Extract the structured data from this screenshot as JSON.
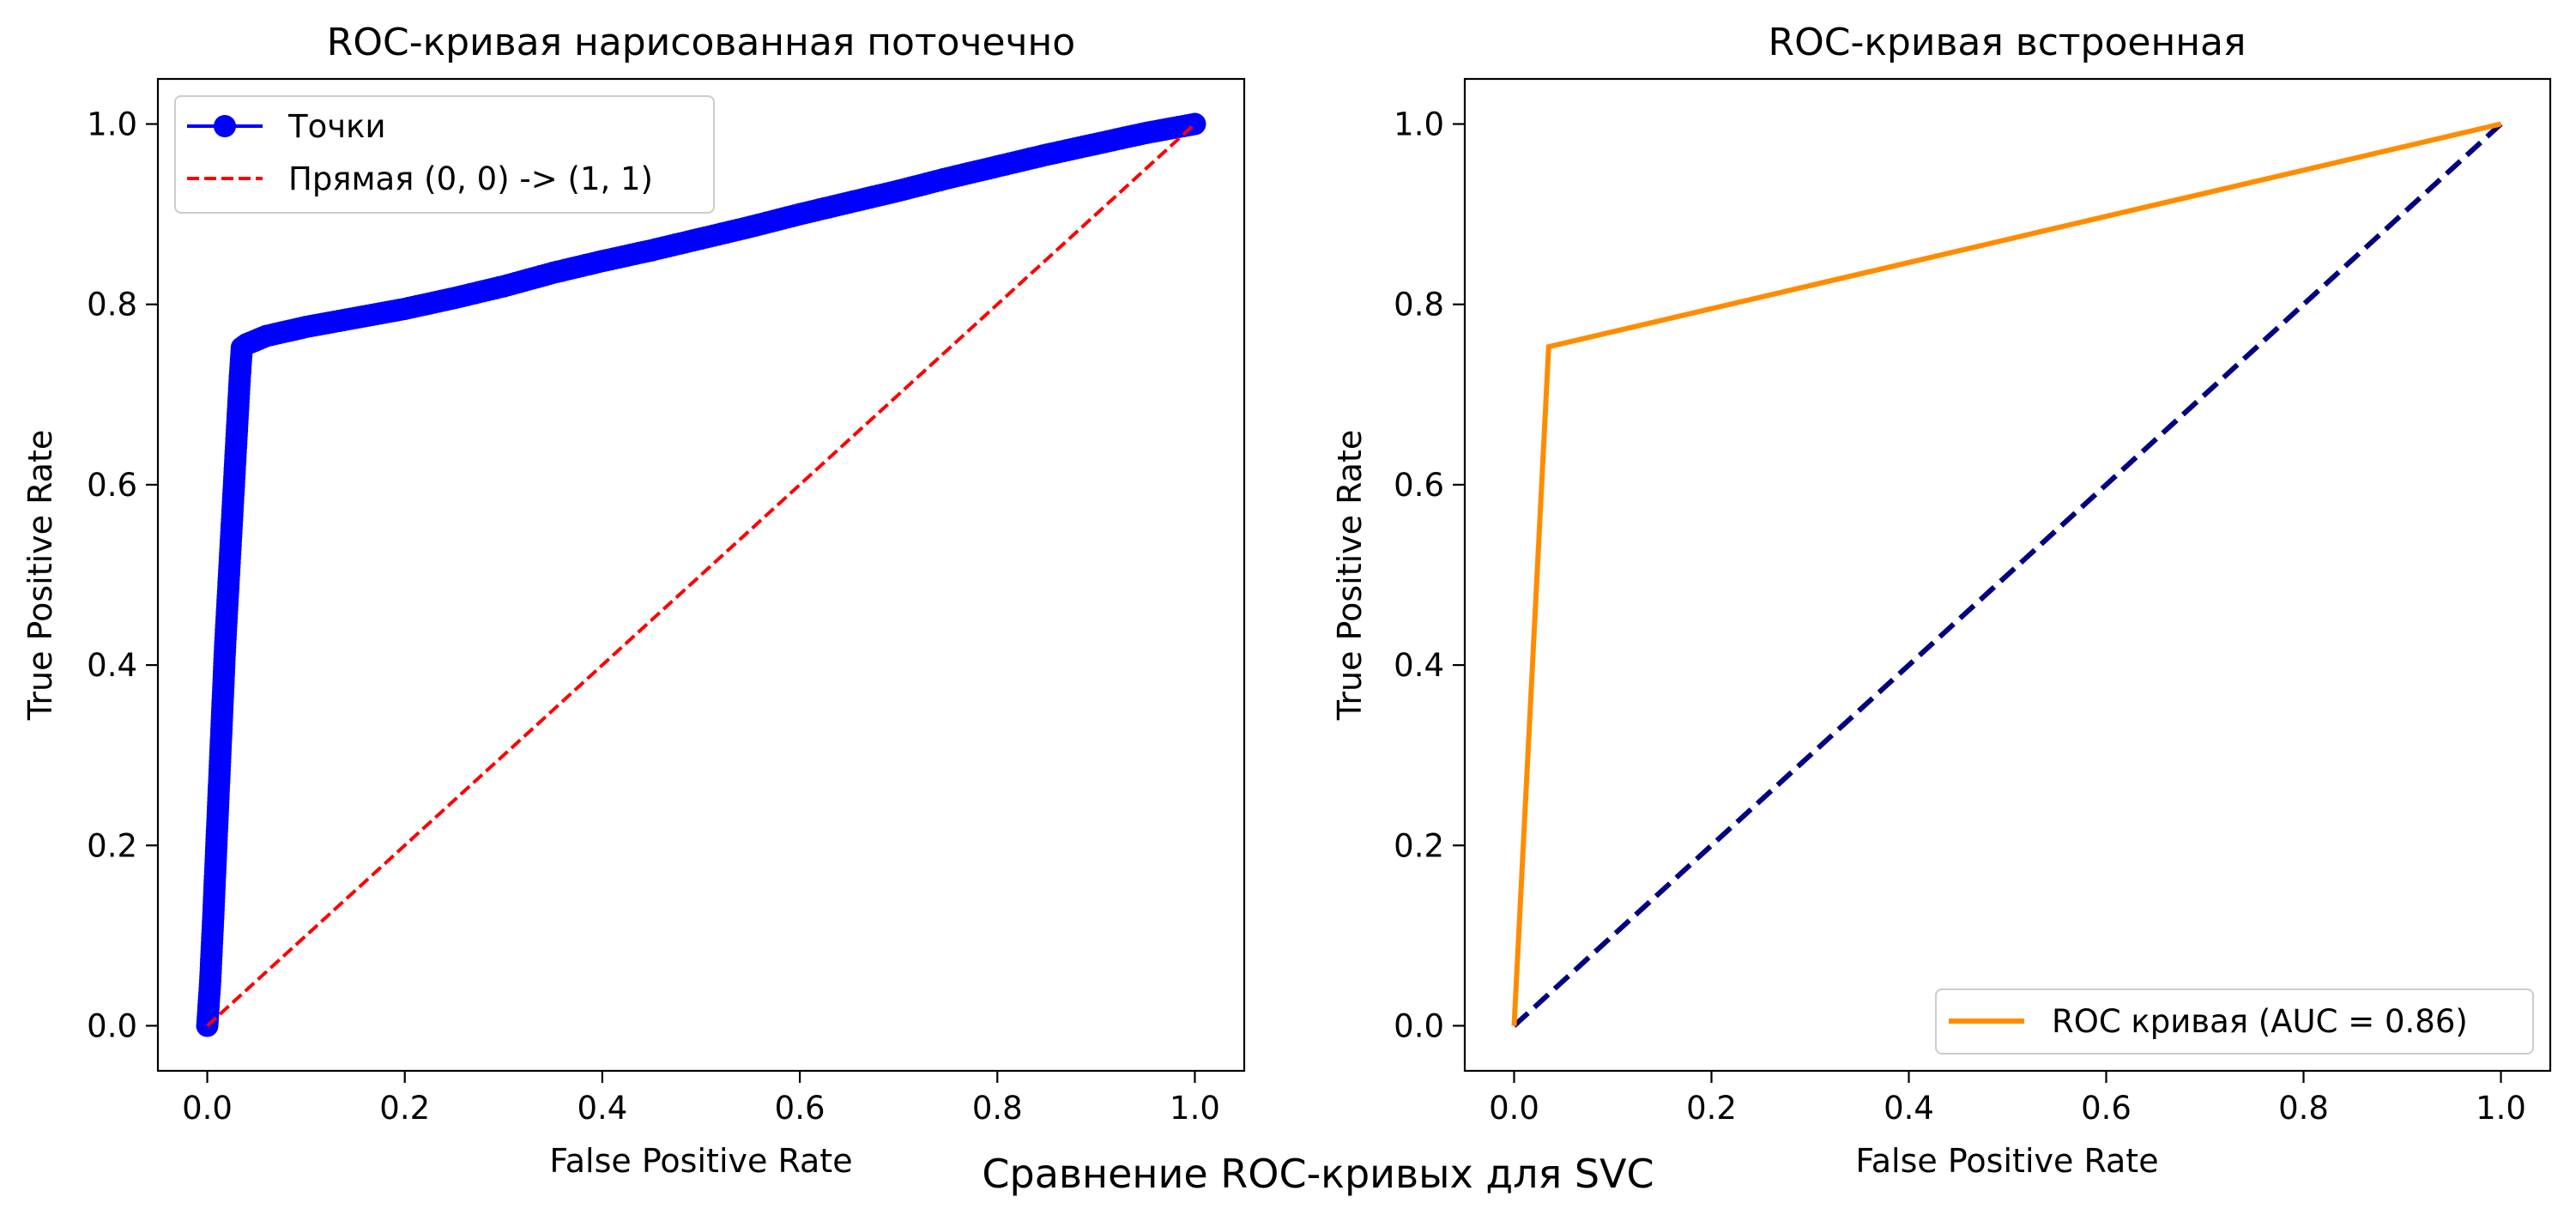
{
  "figure": {
    "suptitle": "Сравнение ROC-кривых для SVC"
  },
  "colors": {
    "points": "#0000ff",
    "diagonal_left": "#ff0000",
    "roc_curve": "#ff8c00",
    "diagonal_right": "#000080"
  },
  "chart_data": [
    {
      "type": "line",
      "title": "ROC-кривая нарисованная поточечно",
      "xlabel": "False Positive Rate",
      "ylabel": "True Positive Rate",
      "xlim": [
        -0.05,
        1.05
      ],
      "ylim": [
        -0.05,
        1.05
      ],
      "xticks": [
        "0.0",
        "0.2",
        "0.4",
        "0.6",
        "0.8",
        "1.0"
      ],
      "yticks": [
        "0.0",
        "0.2",
        "0.4",
        "0.6",
        "0.8",
        "1.0"
      ],
      "grid": false,
      "legend_position": "top-left",
      "series": [
        {
          "name": "Точки",
          "style": "line-with-markers",
          "x": [
            0.0,
            0.003,
            0.006,
            0.01,
            0.014,
            0.018,
            0.022,
            0.026,
            0.03,
            0.033,
            0.035,
            0.04,
            0.06,
            0.1,
            0.15,
            0.2,
            0.25,
            0.3,
            0.35,
            0.4,
            0.45,
            0.5,
            0.55,
            0.6,
            0.65,
            0.7,
            0.75,
            0.8,
            0.85,
            0.9,
            0.95,
            0.98,
            1.0
          ],
          "y": [
            0.0,
            0.05,
            0.12,
            0.22,
            0.32,
            0.42,
            0.5,
            0.58,
            0.66,
            0.72,
            0.752,
            0.756,
            0.765,
            0.775,
            0.785,
            0.795,
            0.807,
            0.82,
            0.835,
            0.848,
            0.86,
            0.873,
            0.886,
            0.9,
            0.913,
            0.926,
            0.94,
            0.953,
            0.966,
            0.978,
            0.99,
            0.996,
            1.0
          ]
        },
        {
          "name": "Прямая (0, 0) -> (1, 1)",
          "style": "dashed",
          "x": [
            0,
            1
          ],
          "y": [
            0,
            1
          ]
        }
      ]
    },
    {
      "type": "line",
      "title": "ROC-кривая встроенная",
      "xlabel": "False Positive Rate",
      "ylabel": "True Positive Rate",
      "xlim": [
        -0.05,
        1.05
      ],
      "ylim": [
        -0.05,
        1.05
      ],
      "xticks": [
        "0.0",
        "0.2",
        "0.4",
        "0.6",
        "0.8",
        "1.0"
      ],
      "yticks": [
        "0.0",
        "0.2",
        "0.4",
        "0.6",
        "0.8",
        "1.0"
      ],
      "grid": false,
      "legend_position": "lower-right",
      "series": [
        {
          "name": "ROC кривая (AUC = 0.86)",
          "style": "solid",
          "x": [
            0.0,
            0.035,
            1.0
          ],
          "y": [
            0.0,
            0.753,
            1.0
          ]
        },
        {
          "name": "",
          "style": "dashed",
          "x": [
            0,
            1
          ],
          "y": [
            0,
            1
          ]
        }
      ]
    }
  ]
}
